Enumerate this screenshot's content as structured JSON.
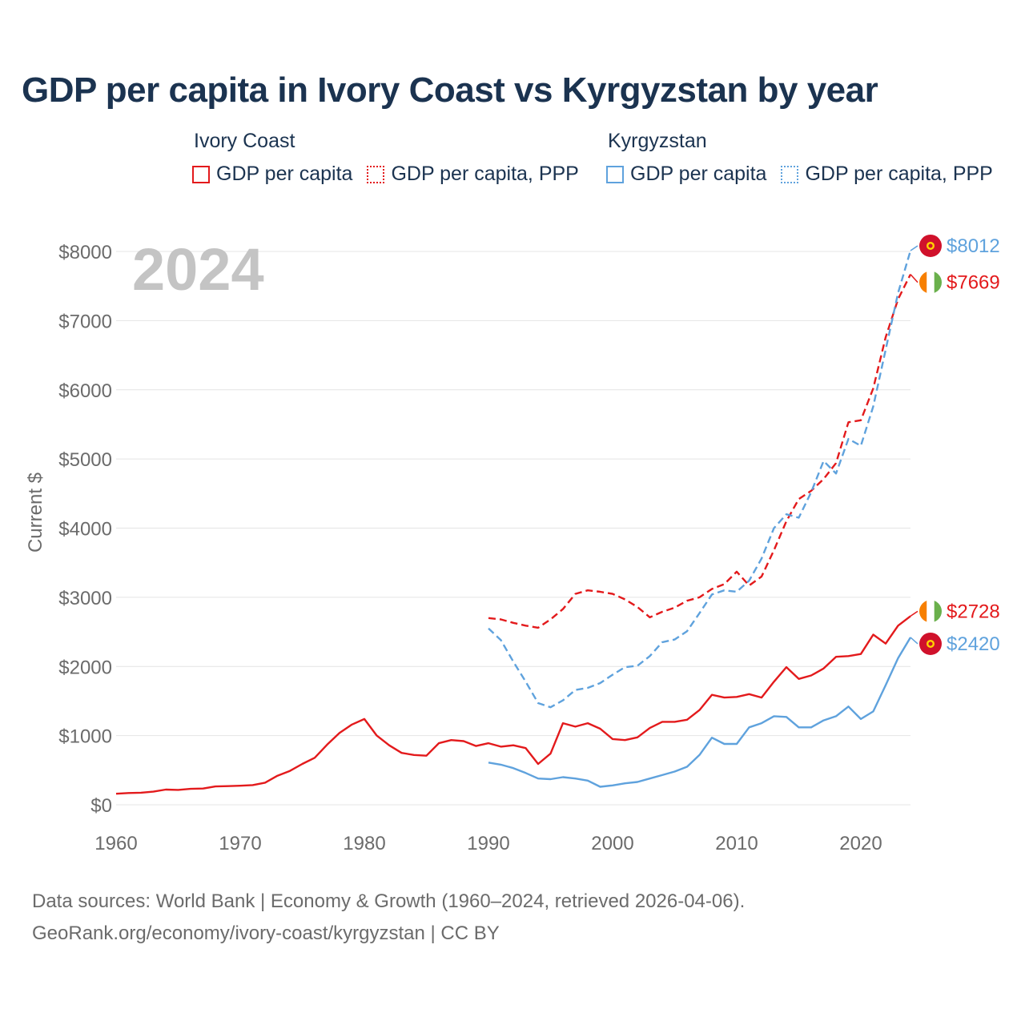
{
  "title": "GDP per capita in Ivory Coast vs Kyrgyzstan by year",
  "year_label": "2024",
  "legend": [
    {
      "country": "Ivory Coast",
      "items": [
        "GDP per capita",
        "GDP per capita, PPP"
      ],
      "color": "#e31a1c"
    },
    {
      "country": "Kyrgyzstan",
      "items": [
        "GDP per capita",
        "GDP per capita, PPP"
      ],
      "color": "#5fa2dd"
    }
  ],
  "footer": {
    "line1": "Data sources: World Bank | Economy & Growth (1960–2024, retrieved 2026-04-06).",
    "line2": "GeoRank.org/economy/ivory-coast/kyrgyzstan | CC BY"
  },
  "chart_data": {
    "type": "line",
    "ylabel": "Current $",
    "xlim": [
      1960,
      2024
    ],
    "ylim": [
      0,
      8000
    ],
    "x_ticks": [
      1960,
      1970,
      1980,
      1990,
      2000,
      2010,
      2020
    ],
    "y_ticks": [
      0,
      1000,
      2000,
      3000,
      4000,
      5000,
      6000,
      7000,
      8000
    ],
    "y_tick_labels": [
      "$0",
      "$1000",
      "$2000",
      "$3000",
      "$4000",
      "$5000",
      "$6000",
      "$7000",
      "$8000"
    ],
    "series": [
      {
        "name": "Ivory Coast GDP per capita",
        "color": "#e31a1c",
        "dashed": false,
        "start_year": 1960,
        "values": [
          160,
          170,
          175,
          190,
          220,
          215,
          230,
          235,
          265,
          270,
          275,
          285,
          320,
          420,
          490,
          590,
          680,
          870,
          1040,
          1160,
          1240,
          1000,
          860,
          750,
          720,
          710,
          890,
          935,
          920,
          850,
          890,
          840,
          860,
          820,
          590,
          740,
          1180,
          1130,
          1180,
          1100,
          950,
          935,
          975,
          1110,
          1200,
          1200,
          1230,
          1370,
          1590,
          1550,
          1560,
          1600,
          1550,
          1780,
          1990,
          1820,
          1870,
          1970,
          2140,
          2150,
          2180,
          2460,
          2330,
          2590,
          2728
        ],
        "end_label": "$2728",
        "flag": "ci"
      },
      {
        "name": "Ivory Coast GDP per capita, PPP",
        "color": "#e31a1c",
        "dashed": true,
        "start_year": 1990,
        "values": [
          2700,
          2680,
          2630,
          2590,
          2560,
          2680,
          2830,
          3050,
          3100,
          3080,
          3050,
          2970,
          2860,
          2710,
          2790,
          2850,
          2950,
          3000,
          3120,
          3190,
          3370,
          3170,
          3300,
          3680,
          4100,
          4420,
          4540,
          4710,
          4940,
          5530,
          5560,
          6020,
          6760,
          7310,
          7669
        ],
        "end_label": "$7669",
        "flag": "ci"
      },
      {
        "name": "Kyrgyzstan GDP per capita",
        "color": "#5fa2dd",
        "dashed": false,
        "start_year": 1990,
        "values": [
          610,
          580,
          530,
          460,
          380,
          370,
          400,
          380,
          350,
          260,
          280,
          310,
          330,
          380,
          430,
          480,
          550,
          720,
          970,
          880,
          880,
          1120,
          1180,
          1280,
          1270,
          1120,
          1120,
          1220,
          1280,
          1420,
          1240,
          1350,
          1730,
          2120,
          2420
        ],
        "end_label": "$2420",
        "flag": "kg"
      },
      {
        "name": "Kyrgyzstan GDP per capita, PPP",
        "color": "#5fa2dd",
        "dashed": true,
        "start_year": 1990,
        "values": [
          2550,
          2380,
          2070,
          1780,
          1470,
          1410,
          1510,
          1660,
          1690,
          1760,
          1880,
          1990,
          2010,
          2150,
          2350,
          2390,
          2510,
          2770,
          3040,
          3100,
          3080,
          3240,
          3560,
          4000,
          4200,
          4150,
          4520,
          4970,
          4790,
          5290,
          5190,
          5760,
          6580,
          7400,
          8012
        ],
        "end_label": "$8012",
        "flag": "kg"
      }
    ]
  }
}
